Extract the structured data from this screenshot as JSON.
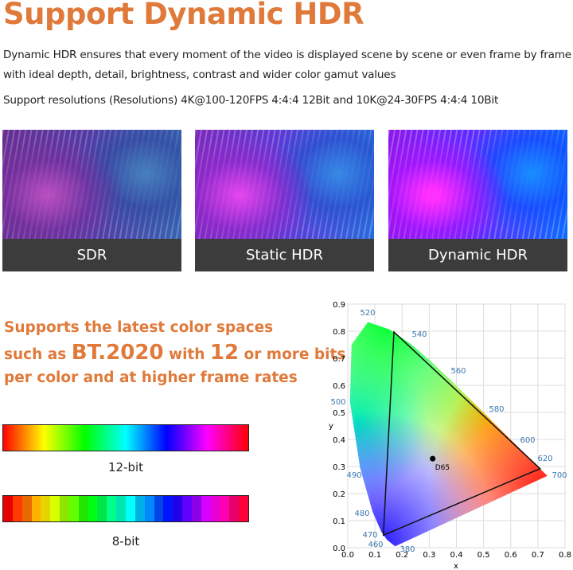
{
  "header": {
    "title": "Support Dynamic HDR",
    "description": "Dynamic HDR ensures that every moment of the video is displayed scene by scene or even frame by frame with ideal depth, detail, brightness, contrast and wider color gamut values",
    "resolutions": "Support resolutions (Resolutions) 4K@100-120FPS 4:4:4 12Bit and 10K@24-30FPS 4:4:4 10Bit"
  },
  "comparison": {
    "panels": [
      "SDR",
      "Static HDR",
      "Dynamic HDR"
    ]
  },
  "color_heading": {
    "line1": "Supports the latest color spaces",
    "line2_start": "such as ",
    "standard": "BT.2020",
    "line2_mid": " with ",
    "bits": "12",
    "line2_end": " or more bits",
    "line3": "per color and at higher frame rates"
  },
  "bit_bars": {
    "smooth": "12-bit",
    "stepped": "8-bit"
  },
  "cie_diagram": {
    "x_label": "x",
    "y_label": "y",
    "xticks": [
      "0.0",
      "0.1",
      "0.2",
      "0.3",
      "0.4",
      "0.5",
      "0.6",
      "0.7",
      "0.8"
    ],
    "yticks": [
      "0.0",
      "0.1",
      "0.2",
      "0.3",
      "0.4",
      "0.5",
      "0.6",
      "0.7",
      "0.8",
      "0.9"
    ],
    "wavelengths": [
      "520",
      "540",
      "560",
      "580",
      "600",
      "620",
      "700",
      "500",
      "490",
      "480",
      "470",
      "460",
      "380"
    ],
    "white_point": "D65"
  }
}
